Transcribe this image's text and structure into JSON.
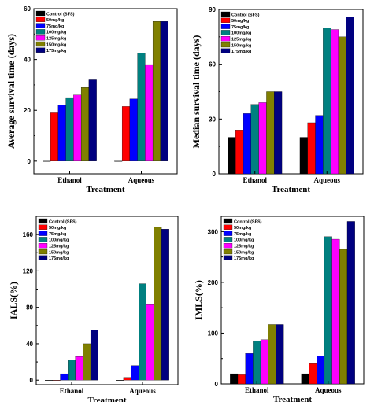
{
  "colors": {
    "series": [
      "#000000",
      "#ff0000",
      "#0000ff",
      "#008080",
      "#ff00ff",
      "#808000",
      "#000080"
    ]
  },
  "chart_data": [
    {
      "type": "bar",
      "ylabel": "Average survival time (days)",
      "xlabel": "Treatment",
      "categories": [
        "Ethanol",
        "Aqueous"
      ],
      "ylim": [
        -5,
        60
      ],
      "yticks": [
        0,
        20,
        40,
        60
      ],
      "series": [
        {
          "name": "Control (SFS)",
          "values": [
            0,
            0
          ]
        },
        {
          "name": "50mg/kg",
          "values": [
            19,
            21.5
          ]
        },
        {
          "name": "75mg/kg",
          "values": [
            22,
            24.5
          ]
        },
        {
          "name": "100mg/kg",
          "values": [
            25,
            42.5
          ]
        },
        {
          "name": "125mg/kg",
          "values": [
            26,
            38
          ]
        },
        {
          "name": "150mg/kg",
          "values": [
            29,
            55
          ]
        },
        {
          "name": "175mg/kg",
          "values": [
            32,
            55
          ]
        }
      ]
    },
    {
      "type": "bar",
      "ylabel": "Median survival time (days)",
      "xlabel": "Treatment",
      "categories": [
        "Ethanol",
        "Aqueous"
      ],
      "ylim": [
        0,
        90
      ],
      "yticks": [
        0,
        30,
        60,
        90
      ],
      "series": [
        {
          "name": "Control (SFS)",
          "values": [
            20,
            20
          ]
        },
        {
          "name": "50mg/kg",
          "values": [
            24,
            28
          ]
        },
        {
          "name": "75mg/kg",
          "values": [
            33,
            32
          ]
        },
        {
          "name": "100mg/kg",
          "values": [
            38,
            80
          ]
        },
        {
          "name": "125mg/kg",
          "values": [
            39,
            79
          ]
        },
        {
          "name": "150mg/kg",
          "values": [
            45,
            75
          ]
        },
        {
          "name": "175mg/kg",
          "values": [
            45,
            86
          ]
        }
      ]
    },
    {
      "type": "bar",
      "ylabel": "IALS(%)",
      "xlabel": "Treatment",
      "categories": [
        "Ethanol",
        "Aqueous"
      ],
      "ylim": [
        -5,
        180
      ],
      "yticks": [
        0,
        40,
        80,
        120,
        160
      ],
      "series": [
        {
          "name": "Control (SFS)",
          "values": [
            0,
            0
          ]
        },
        {
          "name": "50mg/kg",
          "values": [
            0,
            3
          ]
        },
        {
          "name": "75mg/kg",
          "values": [
            7,
            16
          ]
        },
        {
          "name": "100mg/kg",
          "values": [
            22,
            106
          ]
        },
        {
          "name": "125mg/kg",
          "values": [
            26,
            83
          ]
        },
        {
          "name": "150mg/kg",
          "values": [
            40,
            168
          ]
        },
        {
          "name": "175mg/kg",
          "values": [
            55,
            166
          ]
        }
      ]
    },
    {
      "type": "bar",
      "ylabel": "IMLS(%)",
      "xlabel": "Treatment",
      "categories": [
        "Ethanol",
        "Aqueous"
      ],
      "ylim": [
        0,
        330
      ],
      "yticks": [
        0,
        100,
        200,
        300
      ],
      "series": [
        {
          "name": "Control (SFS)",
          "values": [
            20,
            20
          ]
        },
        {
          "name": "50mg/kg",
          "values": [
            18,
            40
          ]
        },
        {
          "name": "75mg/kg",
          "values": [
            60,
            55
          ]
        },
        {
          "name": "100mg/kg",
          "values": [
            85,
            290
          ]
        },
        {
          "name": "125mg/kg",
          "values": [
            87,
            285
          ]
        },
        {
          "name": "150mg/kg",
          "values": [
            117,
            265
          ]
        },
        {
          "name": "175mg/kg",
          "values": [
            117,
            320
          ]
        }
      ]
    }
  ]
}
